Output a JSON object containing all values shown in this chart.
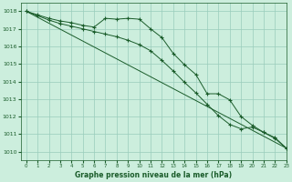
{
  "title": "Graphe pression niveau de la mer (hPa)",
  "background_color": "#cceedd",
  "grid_color": "#99ccbb",
  "line_color": "#1a5c2a",
  "xlim": [
    -0.5,
    23
  ],
  "ylim": [
    1009.5,
    1018.5
  ],
  "yticks": [
    1010,
    1011,
    1012,
    1013,
    1014,
    1015,
    1016,
    1017,
    1018
  ],
  "xticks": [
    0,
    1,
    2,
    3,
    4,
    5,
    6,
    7,
    8,
    9,
    10,
    11,
    12,
    13,
    14,
    15,
    16,
    17,
    18,
    19,
    20,
    21,
    22,
    23
  ],
  "series1": {
    "x": [
      0,
      23
    ],
    "y": [
      1018.0,
      1010.2
    ]
  },
  "series2": {
    "x": [
      0,
      1,
      2,
      3,
      4,
      5,
      6,
      7,
      8,
      9,
      10,
      11,
      12,
      13,
      14,
      15,
      16,
      17,
      18,
      19,
      20,
      21,
      22,
      23
    ],
    "y": [
      1018.0,
      1017.8,
      1017.6,
      1017.45,
      1017.35,
      1017.2,
      1017.1,
      1017.6,
      1017.55,
      1017.6,
      1017.55,
      1017.0,
      1016.5,
      1015.6,
      1014.95,
      1014.4,
      1013.3,
      1013.3,
      1012.95,
      1012.0,
      1011.5,
      1011.1,
      1010.8,
      1010.2
    ]
  },
  "series3": {
    "x": [
      0,
      1,
      2,
      3,
      4,
      5,
      6,
      7,
      8,
      9,
      10,
      11,
      12,
      13,
      14,
      15,
      16,
      17,
      18,
      19,
      20,
      21,
      22,
      23
    ],
    "y": [
      1018.0,
      1017.75,
      1017.5,
      1017.3,
      1017.15,
      1017.0,
      1016.85,
      1016.7,
      1016.55,
      1016.35,
      1016.1,
      1015.75,
      1015.2,
      1014.6,
      1013.95,
      1013.35,
      1012.7,
      1012.05,
      1011.55,
      1011.3,
      1011.4,
      1011.1,
      1010.75,
      1010.2
    ]
  }
}
